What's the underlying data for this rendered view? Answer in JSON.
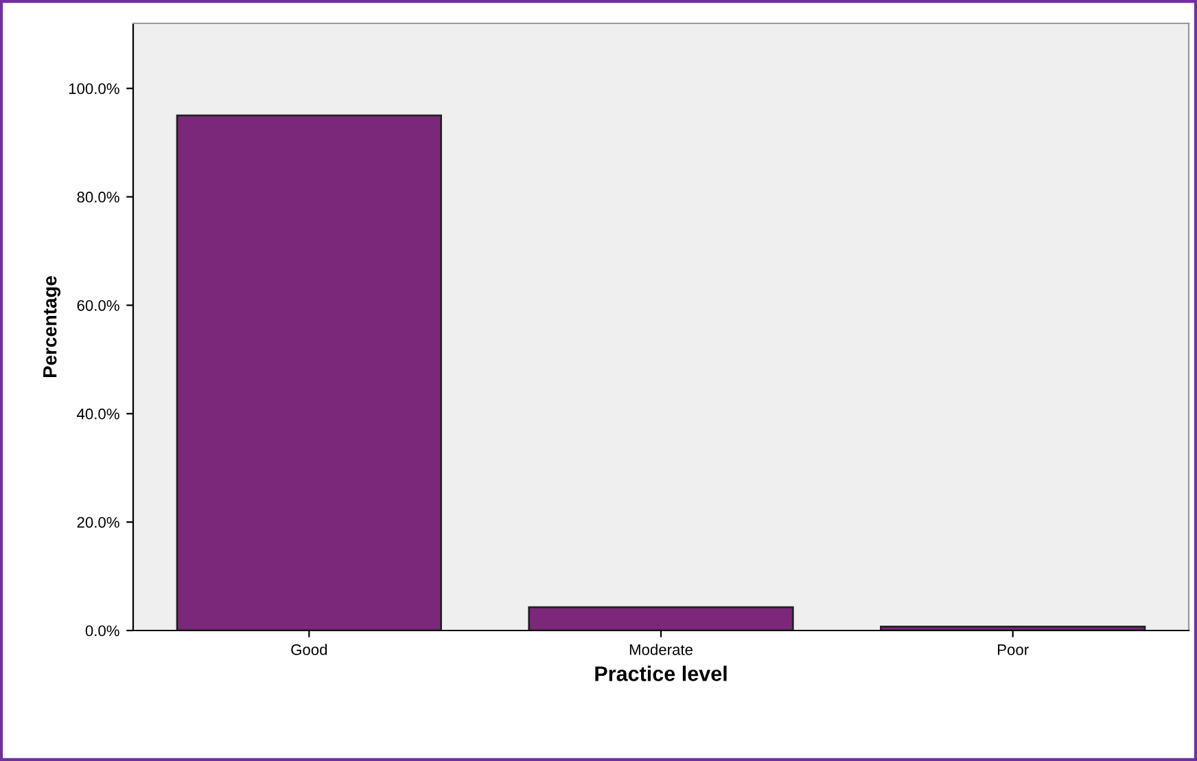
{
  "chart_data": {
    "type": "bar",
    "xlabel": "Practice level",
    "ylabel": "Percentage",
    "categories": [
      "Good",
      "Moderate",
      "Poor"
    ],
    "values": [
      95.0,
      4.3,
      0.7
    ],
    "color": "#7b287a",
    "ylim": [
      0,
      112
    ],
    "yticks": [
      {
        "value": 0,
        "label": "0.0%"
      },
      {
        "value": 20,
        "label": "20.0%"
      },
      {
        "value": 40,
        "label": "40.0%"
      },
      {
        "value": 60,
        "label": "60.0%"
      },
      {
        "value": 80,
        "label": "80.0%"
      },
      {
        "value": 100,
        "label": "100.0%"
      }
    ],
    "grid": false
  }
}
